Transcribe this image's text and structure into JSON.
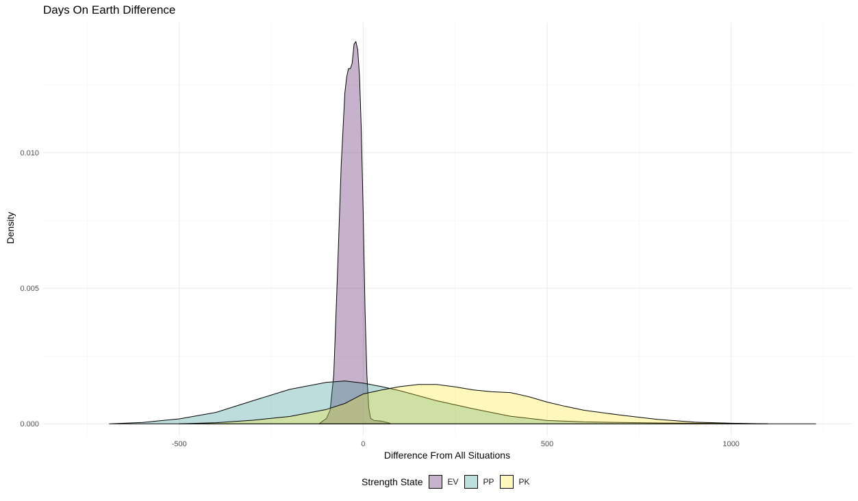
{
  "chart_data": {
    "type": "area",
    "title": "Days On Earth Difference",
    "xlabel": "Difference From All Situations",
    "ylabel": "Density",
    "xlim": [
      -870,
      1330
    ],
    "ylim": [
      -0.00045,
      0.0148
    ],
    "x_ticks": [
      -500,
      0,
      500,
      1000
    ],
    "x_tick_labels": [
      "-500",
      "0",
      "500",
      "1000"
    ],
    "y_ticks": [
      0.0,
      0.005,
      0.01
    ],
    "y_tick_labels": [
      "0.000",
      "0.005",
      "0.010"
    ],
    "grid": true,
    "legend": {
      "title": "Strength State",
      "position": "bottom"
    },
    "series": [
      {
        "name": "EV",
        "color": "#440154",
        "x": [
          -120,
          -100,
          -90,
          -80,
          -70,
          -60,
          -50,
          -45,
          -40,
          -35,
          -30,
          -25,
          -20,
          -15,
          -10,
          -5,
          0,
          5,
          10,
          15,
          20,
          30,
          50,
          70,
          75
        ],
        "y": [
          0.0,
          0.0002,
          0.0005,
          0.0018,
          0.0055,
          0.0095,
          0.0122,
          0.0128,
          0.0131,
          0.0131,
          0.0133,
          0.014,
          0.0141,
          0.0138,
          0.0128,
          0.0108,
          0.0078,
          0.0042,
          0.0018,
          0.0006,
          0.0002,
          0.00012,
          0.0001,
          3e-05,
          0.0
        ]
      },
      {
        "name": "PP",
        "color": "#21908c",
        "x": [
          -690,
          -600,
          -500,
          -400,
          -300,
          -200,
          -100,
          -50,
          0,
          50,
          100,
          200,
          300,
          400,
          500,
          600,
          700,
          800,
          900,
          1000,
          1100,
          1200,
          1230
        ],
        "y": [
          0.0,
          5e-05,
          0.00018,
          0.00042,
          0.00085,
          0.00127,
          0.00153,
          0.00158,
          0.0015,
          0.00137,
          0.00122,
          0.00085,
          0.00055,
          0.00028,
          0.00012,
          7e-05,
          5e-05,
          3e-05,
          2e-05,
          1e-05,
          0.0,
          0.0,
          0.0
        ]
      },
      {
        "name": "PK",
        "color": "#fde725",
        "x": [
          -500,
          -400,
          -300,
          -200,
          -100,
          -50,
          0,
          50,
          100,
          150,
          200,
          250,
          300,
          350,
          400,
          450,
          500,
          550,
          600,
          700,
          800,
          900,
          1000,
          1100
        ],
        "y": [
          0.0,
          4e-05,
          0.00013,
          0.00027,
          0.00053,
          0.00075,
          0.0011,
          0.00125,
          0.00137,
          0.00145,
          0.00145,
          0.00136,
          0.00125,
          0.00118,
          0.00115,
          0.001,
          0.0008,
          0.00064,
          0.0005,
          0.00032,
          0.00016,
          6e-05,
          2e-05,
          0.0
        ]
      }
    ]
  }
}
